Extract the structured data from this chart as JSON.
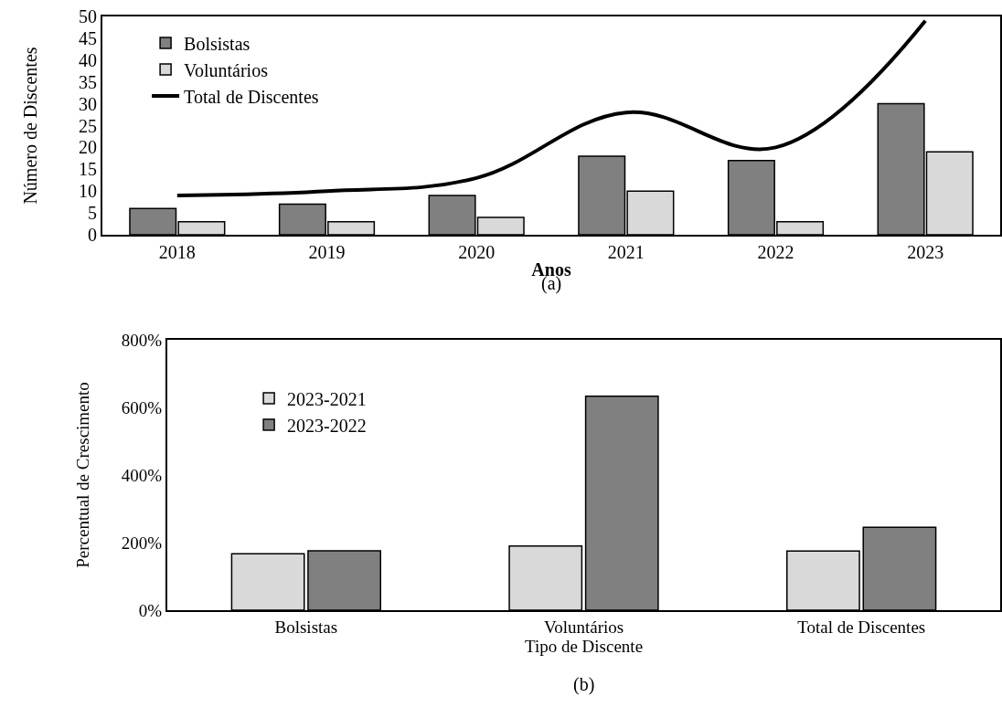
{
  "chart_data": [
    {
      "type": "bar",
      "xlabel": "Anos",
      "ylabel": "Número de Discentes",
      "categories": [
        "2018",
        "2019",
        "2020",
        "2021",
        "2022",
        "2023"
      ],
      "series": [
        {
          "name": "Bolsistas",
          "color": "#808080",
          "values": [
            6,
            7,
            9,
            18,
            17,
            30
          ]
        },
        {
          "name": "Voluntários",
          "color": "#d9d9d9",
          "values": [
            3,
            3,
            4,
            10,
            3,
            19
          ]
        },
        {
          "name": "Total de Discentes",
          "type": "line",
          "color": "#000000",
          "values": [
            9,
            10,
            13,
            28,
            20,
            49
          ]
        }
      ],
      "ylim": [
        0,
        50
      ],
      "yticks": [
        0,
        5,
        10,
        15,
        20,
        25,
        30,
        35,
        40,
        45,
        50
      ],
      "grid": false,
      "legend": "top left",
      "marker": "none",
      "line_style": "solid",
      "annotations": [
        "(a)"
      ]
    },
    {
      "type": "bar",
      "xlabel": "Tipo de Discente",
      "ylabel": "Percentual de Crescimento",
      "categories": [
        "Bolsistas",
        "Voluntários",
        "Total de Discentes"
      ],
      "series": [
        {
          "name": "2023-2021",
          "color": "#d9d9d9",
          "values": [
            167,
            190,
            175
          ]
        },
        {
          "name": "2023-2022",
          "color": "#808080",
          "values": [
            176,
            633,
            245
          ]
        }
      ],
      "ylim": [
        0,
        800
      ],
      "yticks": [
        {
          "value": 0,
          "label": "0%"
        },
        {
          "value": 200,
          "label": "200%"
        },
        {
          "value": 400,
          "label": "400%"
        },
        {
          "value": 600,
          "label": "600%"
        },
        {
          "value": 800,
          "label": "800%"
        }
      ],
      "grid": false,
      "legend": "top left",
      "annotations": [
        "(b)"
      ]
    }
  ]
}
